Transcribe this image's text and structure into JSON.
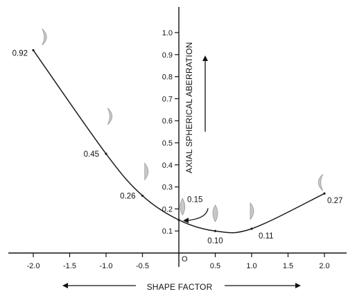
{
  "chart_data": {
    "type": "line",
    "title": "",
    "xlabel": "SHAPE FACTOR",
    "ylabel": "AXIAL SPHERICAL ABERRATION",
    "origin_label": "O",
    "xlim": [
      -2.3,
      2.2
    ],
    "ylim": [
      0,
      1.1
    ],
    "x_ticks": [
      {
        "value": -2.0,
        "label": "-2.0"
      },
      {
        "value": -1.5,
        "label": "-1.5"
      },
      {
        "value": -1.0,
        "label": "-1.0"
      },
      {
        "value": -0.5,
        "label": "-0.5"
      },
      {
        "value": 0.5,
        "label": "0.5"
      },
      {
        "value": 1.0,
        "label": "1.0"
      },
      {
        "value": 1.5,
        "label": "1.5"
      },
      {
        "value": 2.0,
        "label": "2.0"
      }
    ],
    "y_ticks": [
      {
        "value": 0.1,
        "label": "0.1"
      },
      {
        "value": 0.2,
        "label": "0.2"
      },
      {
        "value": 0.3,
        "label": "0.3"
      },
      {
        "value": 0.4,
        "label": "0.4"
      },
      {
        "value": 0.5,
        "label": "0.5"
      },
      {
        "value": 0.6,
        "label": "0.6"
      },
      {
        "value": 0.7,
        "label": "0.7"
      },
      {
        "value": 0.8,
        "label": "0.8"
      },
      {
        "value": 0.9,
        "label": "0.9"
      },
      {
        "value": 1.0,
        "label": "1.0"
      }
    ],
    "points": [
      {
        "x": -2.0,
        "y": 0.92,
        "label": "0.92"
      },
      {
        "x": -1.0,
        "y": 0.45,
        "label": "0.45"
      },
      {
        "x": -0.5,
        "y": 0.26,
        "label": "0.26"
      },
      {
        "x": 0.0,
        "y": 0.15,
        "label": "0.15"
      },
      {
        "x": 0.5,
        "y": 0.1,
        "label": "0.10"
      },
      {
        "x": 1.0,
        "y": 0.11,
        "label": "0.11"
      },
      {
        "x": 2.0,
        "y": 0.27,
        "label": "0.27"
      }
    ],
    "lens_icons": [
      {
        "x": -1.85,
        "y": 0.98,
        "shape": "crescent-right"
      },
      {
        "x": -0.95,
        "y": 0.62,
        "shape": "crescent-right"
      },
      {
        "x": -0.45,
        "y": 0.37,
        "shape": "plano-convex"
      },
      {
        "x": 0.05,
        "y": 0.21,
        "shape": "biconvex"
      },
      {
        "x": 0.5,
        "y": 0.18,
        "shape": "biconvex"
      },
      {
        "x": 1.0,
        "y": 0.19,
        "shape": "plano-convex"
      },
      {
        "x": 1.95,
        "y": 0.32,
        "shape": "crescent-left"
      }
    ],
    "grid": false,
    "legend": "none",
    "colors": {
      "line": "#1a1a1a",
      "lens": "#c8c8c8",
      "lens_stroke": "#9a9a9a"
    }
  }
}
